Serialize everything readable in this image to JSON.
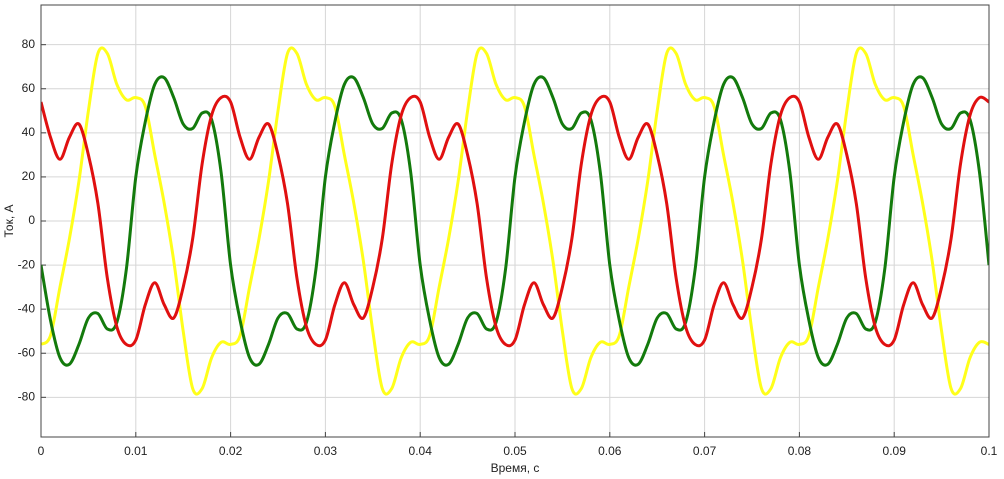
{
  "chart_data": {
    "type": "line",
    "xlabel": "Время, с",
    "ylabel": "Ток, А",
    "x": [
      0,
      0.001,
      0.002,
      0.003,
      0.004,
      0.005,
      0.006,
      0.007,
      0.008,
      0.009,
      0.01,
      0.011,
      0.012,
      0.013,
      0.014,
      0.015,
      0.016,
      0.017,
      0.018,
      0.019,
      0.02,
      0.021,
      0.022,
      0.023,
      0.024,
      0.025,
      0.026,
      0.027,
      0.028,
      0.029,
      0.03,
      0.031,
      0.032,
      0.033,
      0.034,
      0.035,
      0.036,
      0.037,
      0.038,
      0.039,
      0.04,
      0.041,
      0.042,
      0.043,
      0.044,
      0.045,
      0.046,
      0.047,
      0.048,
      0.049,
      0.05,
      0.051,
      0.052,
      0.053,
      0.054,
      0.055,
      0.056,
      0.057,
      0.058,
      0.059,
      0.06,
      0.061,
      0.062,
      0.063,
      0.064,
      0.065,
      0.066,
      0.067,
      0.068,
      0.069,
      0.07,
      0.071,
      0.072,
      0.073,
      0.074,
      0.075,
      0.076,
      0.077,
      0.078,
      0.079,
      0.08,
      0.081,
      0.082,
      0.083,
      0.084,
      0.085,
      0.086,
      0.087,
      0.088,
      0.089,
      0.09,
      0.091,
      0.092,
      0.093,
      0.094,
      0.095,
      0.096,
      0.097,
      0.098,
      0.099,
      0.1
    ],
    "series": [
      {
        "color": "#ffff1a",
        "values": [
          -56,
          -52,
          -30,
          -8,
          18,
          50,
          76,
          76,
          62,
          55,
          56,
          52,
          30,
          8,
          -18,
          -50,
          -76,
          -76,
          -62,
          -55,
          -56,
          -52,
          -30,
          -8,
          18,
          50,
          76,
          76,
          62,
          55,
          56,
          52,
          30,
          8,
          -18,
          -50,
          -76,
          -76,
          -62,
          -55,
          -56,
          -52,
          -30,
          -8,
          18,
          50,
          76,
          76,
          62,
          55,
          56,
          52,
          30,
          8,
          -18,
          -50,
          -76,
          -76,
          -62,
          -55,
          -56,
          -52,
          -30,
          -8,
          18,
          50,
          76,
          76,
          62,
          55,
          56,
          52,
          30,
          8,
          -18,
          -50,
          -76,
          -76,
          -62,
          -55,
          -56,
          -52,
          -30,
          -8,
          18,
          50,
          76,
          76,
          62,
          55,
          56,
          52,
          30,
          8,
          -18,
          -50,
          -76,
          -76,
          -62,
          -55,
          -56
        ]
      },
      {
        "color": "#137a0c",
        "values": [
          -20,
          -45,
          -62,
          -65,
          -56,
          -44,
          -42,
          -49,
          -46,
          -22,
          20,
          45,
          62,
          65,
          56,
          44,
          42,
          49,
          46,
          22,
          -20,
          -45,
          -62,
          -65,
          -56,
          -44,
          -42,
          -49,
          -46,
          -22,
          20,
          45,
          62,
          65,
          56,
          44,
          42,
          49,
          46,
          22,
          -20,
          -45,
          -62,
          -65,
          -56,
          -44,
          -42,
          -49,
          -46,
          -22,
          20,
          45,
          62,
          65,
          56,
          44,
          42,
          49,
          46,
          22,
          -20,
          -45,
          -62,
          -65,
          -56,
          -44,
          -42,
          -49,
          -46,
          -22,
          20,
          45,
          62,
          65,
          56,
          44,
          42,
          49,
          46,
          22,
          -20,
          -45,
          -62,
          -65,
          -56,
          -44,
          -42,
          -49,
          -46,
          -22,
          20,
          45,
          62,
          65,
          56,
          44,
          42,
          49,
          46,
          22,
          -20
        ]
      },
      {
        "color": "#e01010",
        "values": [
          54,
          38,
          28,
          38,
          44,
          30,
          8,
          -26,
          -48,
          -56,
          -54,
          -38,
          -28,
          -38,
          -44,
          -30,
          -8,
          26,
          48,
          56,
          54,
          38,
          28,
          38,
          44,
          30,
          8,
          -26,
          -48,
          -56,
          -54,
          -38,
          -28,
          -38,
          -44,
          -30,
          -8,
          26,
          48,
          56,
          54,
          38,
          28,
          38,
          44,
          30,
          8,
          -26,
          -48,
          -56,
          -54,
          -38,
          -28,
          -38,
          -44,
          -30,
          -8,
          26,
          48,
          56,
          54,
          38,
          28,
          38,
          44,
          30,
          8,
          -26,
          -48,
          -56,
          -54,
          -38,
          -28,
          -38,
          -44,
          -30,
          -8,
          26,
          48,
          56,
          54,
          38,
          28,
          38,
          44,
          30,
          8,
          -26,
          -48,
          -56,
          -54,
          -38,
          -28,
          -38,
          -44,
          -30,
          -8,
          26,
          48,
          56,
          54
        ]
      }
    ],
    "xlim": [
      0,
      0.1
    ],
    "xticks": [
      0,
      0.01,
      0.02,
      0.03,
      0.04,
      0.05,
      0.06,
      0.07,
      0.08,
      0.09,
      0.1
    ],
    "ylim": [
      -98,
      98
    ],
    "yticks": [
      -80,
      -60,
      -40,
      -20,
      0,
      20,
      40,
      60,
      80
    ],
    "grid": true
  }
}
